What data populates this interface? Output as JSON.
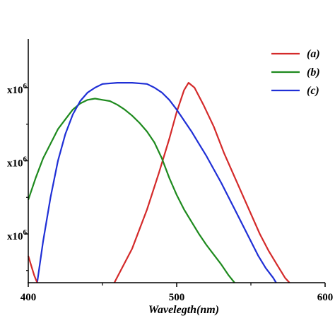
{
  "chart_data": {
    "type": "line",
    "xlabel": "Wavelegth(nm)",
    "ylabel": "",
    "title": "",
    "xlim": [
      400,
      600
    ],
    "ylim": [
      0,
      1
    ],
    "x_ticks": [
      "400",
      "500",
      "600"
    ],
    "y_tick_labels": [
      "x10",
      "6",
      "x10",
      "6",
      "x10",
      "6"
    ],
    "y_ticks_values": [
      0.8,
      0.5,
      0.2
    ],
    "legend_position": "top-right",
    "grid": false,
    "series": [
      {
        "name": "(a)",
        "color": "#d42a2a",
        "x": [
          458,
          470,
          480,
          488,
          495,
          500,
          505,
          508,
          512,
          518,
          525,
          532,
          540,
          548,
          556,
          562,
          568,
          573,
          576
        ],
        "y": [
          0.0,
          0.14,
          0.3,
          0.45,
          0.59,
          0.7,
          0.79,
          0.82,
          0.8,
          0.73,
          0.64,
          0.53,
          0.42,
          0.31,
          0.2,
          0.13,
          0.07,
          0.02,
          0.0
        ]
      },
      {
        "name": "(b)",
        "color": "#1e8a1e",
        "x": [
          400,
          405,
          410,
          415,
          420,
          425,
          430,
          435,
          440,
          445,
          450,
          455,
          460,
          465,
          470,
          475,
          480,
          485,
          490,
          495,
          500,
          505,
          510,
          515,
          520,
          525,
          530,
          535,
          539
        ],
        "y": [
          0.34,
          0.43,
          0.51,
          0.57,
          0.63,
          0.67,
          0.71,
          0.735,
          0.75,
          0.755,
          0.75,
          0.745,
          0.73,
          0.71,
          0.685,
          0.655,
          0.62,
          0.575,
          0.51,
          0.43,
          0.36,
          0.3,
          0.25,
          0.2,
          0.155,
          0.115,
          0.075,
          0.03,
          0.0
        ]
      },
      {
        "name": "(c)",
        "color": "#1f2fd6",
        "x": [
          406,
          410,
          415,
          420,
          425,
          430,
          435,
          440,
          445,
          450,
          460,
          470,
          480,
          485,
          490,
          495,
          500,
          505,
          510,
          515,
          520,
          525,
          530,
          535,
          540,
          545,
          550,
          555,
          560,
          565,
          567
        ],
        "y": [
          0.0,
          0.17,
          0.35,
          0.5,
          0.61,
          0.69,
          0.745,
          0.78,
          0.8,
          0.815,
          0.82,
          0.82,
          0.815,
          0.8,
          0.78,
          0.75,
          0.71,
          0.665,
          0.62,
          0.57,
          0.52,
          0.465,
          0.41,
          0.35,
          0.29,
          0.23,
          0.17,
          0.11,
          0.06,
          0.02,
          0.0
        ]
      },
      {
        "name": "",
        "color": "#d42a2a",
        "x": [
          400,
          402,
          404,
          406
        ],
        "y": [
          0.11,
          0.07,
          0.03,
          0.0
        ]
      }
    ]
  }
}
